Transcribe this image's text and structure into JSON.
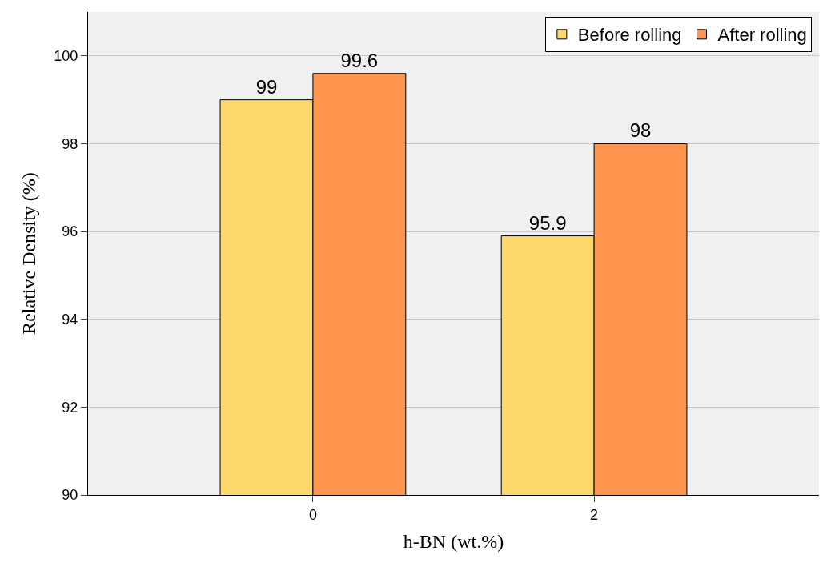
{
  "chart_data": {
    "type": "bar",
    "xlabel": "h-BN (wt.%)",
    "ylabel": "Relative Density (%)",
    "categories": [
      "0",
      "2"
    ],
    "series": [
      {
        "name": "Before rolling",
        "color": "#fdd86c",
        "values": [
          99,
          95.9
        ]
      },
      {
        "name": "After rolling",
        "color": "#fd954f",
        "values": [
          99.6,
          98
        ]
      }
    ],
    "ylim": [
      90,
      101
    ],
    "yticks": [
      90,
      92,
      94,
      96,
      98,
      100
    ],
    "grid": "y",
    "legend": "top right",
    "data_labels": true
  }
}
